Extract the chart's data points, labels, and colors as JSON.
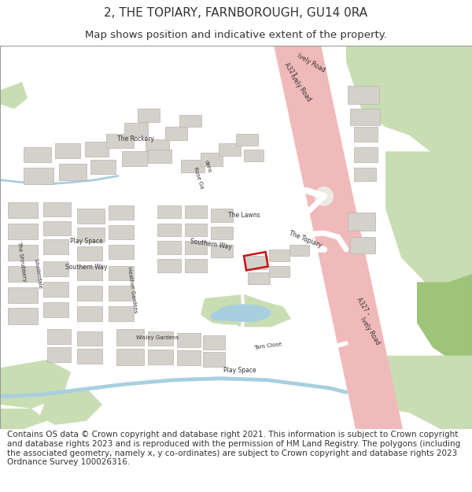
{
  "title": "2, THE TOPIARY, FARNBOROUGH, GU14 0RA",
  "subtitle": "Map shows position and indicative extent of the property.",
  "footer": "Contains OS data © Crown copyright and database right 2021. This information is subject to Crown copyright and database rights 2023 and is reproduced with the permission of HM Land Registry. The polygons (including the associated geometry, namely x, y co-ordinates) are subject to Crown copyright and database rights 2023 Ordnance Survey 100026316.",
  "title_fontsize": 11,
  "subtitle_fontsize": 9.5,
  "footer_fontsize": 7.5,
  "fig_width": 6.0,
  "fig_height": 6.25,
  "bg_color": "#ede9e3",
  "road_pink": "#f0baba",
  "road_white": "#ffffff",
  "green_light": "#c9ddb3",
  "green_dark": "#9ec47a",
  "water_blue": "#a8cfe0",
  "building_gray": "#d4d0ca",
  "building_outline": "#b8b4ae",
  "plot_red": "#cc1111",
  "text_dark": "#333333",
  "white": "#ffffff"
}
